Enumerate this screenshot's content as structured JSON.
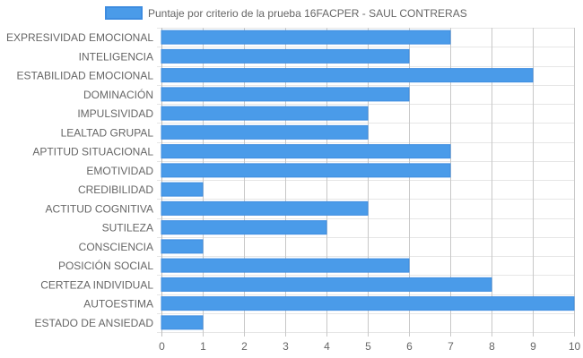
{
  "chart_data": {
    "type": "bar",
    "orientation": "horizontal",
    "title": "",
    "xlabel": "",
    "ylabel": "",
    "categories": [
      "EXPRESIVIDAD EMOCIONAL",
      "INTELIGENCIA",
      "ESTABILIDAD EMOCIONAL",
      "DOMINACIÓN",
      "IMPULSIVIDAD",
      "LEALTAD GRUPAL",
      "APTITUD SITUACIONAL",
      "EMOTIVIDAD",
      "CREDIBILIDAD",
      "ACTITUD COGNITIVA",
      "SUTILEZA",
      "CONSCIENCIA",
      "POSICIÓN SOCIAL",
      "CERTEZA INDIVIDUAL",
      "AUTOESTIMA",
      "ESTADO DE ANSIEDAD"
    ],
    "series": [
      {
        "name": "Puntaje por criterio de la prueba 16FACPER - SAUL CONTRERAS",
        "values": [
          7,
          6,
          9,
          6,
          5,
          5,
          7,
          7,
          1,
          5,
          4,
          1,
          6,
          8,
          10,
          1
        ],
        "color": "#4a9be9",
        "border_color": "#3d8ce0"
      }
    ],
    "xlim": [
      0,
      10
    ],
    "x_ticks": [
      "0",
      "1",
      "2",
      "3",
      "4",
      "5",
      "6",
      "7",
      "8",
      "9",
      "10"
    ],
    "grid": true,
    "legend_position": "top"
  }
}
